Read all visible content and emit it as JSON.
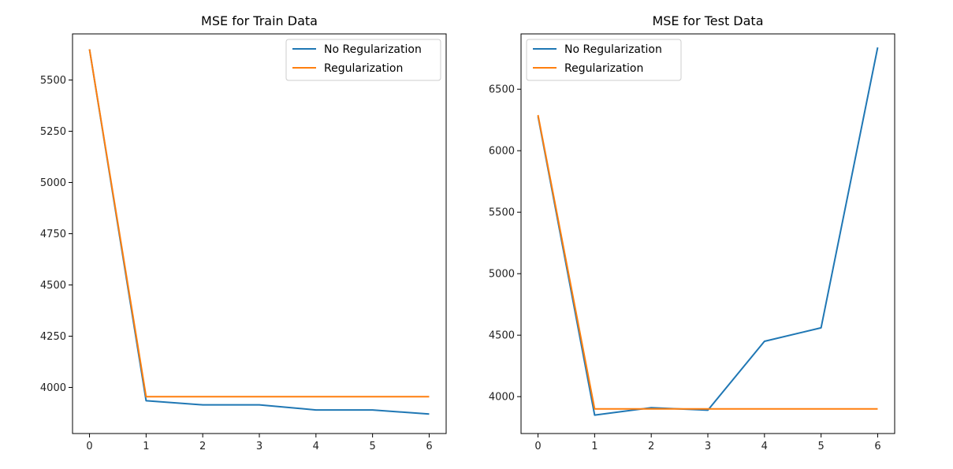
{
  "chart_data": [
    {
      "type": "line",
      "title": "MSE for Train Data",
      "xlabel": "",
      "ylabel": "",
      "x": [
        0,
        1,
        2,
        3,
        4,
        5,
        6
      ],
      "xlim": [
        -0.3,
        6.3
      ],
      "ylim": [
        3775,
        5725
      ],
      "xticks": [
        0,
        1,
        2,
        3,
        4,
        5,
        6
      ],
      "yticks": [
        4000,
        4250,
        4500,
        4750,
        5000,
        5250,
        5500
      ],
      "series": [
        {
          "name": "No Regularization",
          "color": "#1f77b4",
          "values": [
            5650,
            3935,
            3915,
            3915,
            3890,
            3890,
            3870
          ]
        },
        {
          "name": "Regularization",
          "color": "#ff7f0e",
          "values": [
            5650,
            3955,
            3955,
            3955,
            3955,
            3955,
            3955
          ]
        }
      ],
      "legend": "top-right",
      "grid": false
    },
    {
      "type": "line",
      "title": "MSE for Test Data",
      "xlabel": "",
      "ylabel": "",
      "x": [
        0,
        1,
        2,
        3,
        4,
        5,
        6
      ],
      "xlim": [
        -0.3,
        6.3
      ],
      "ylim": [
        3700,
        6950
      ],
      "xticks": [
        0,
        1,
        2,
        3,
        4,
        5,
        6
      ],
      "yticks": [
        4000,
        4500,
        5000,
        5500,
        6000,
        6500
      ],
      "series": [
        {
          "name": "No Regularization",
          "color": "#1f77b4",
          "values": [
            6280,
            3850,
            3910,
            3890,
            4450,
            4560,
            6840
          ]
        },
        {
          "name": "Regularization",
          "color": "#ff7f0e",
          "values": [
            6290,
            3900,
            3900,
            3900,
            3900,
            3900,
            3900
          ]
        }
      ],
      "legend": "top-left",
      "grid": false
    }
  ]
}
